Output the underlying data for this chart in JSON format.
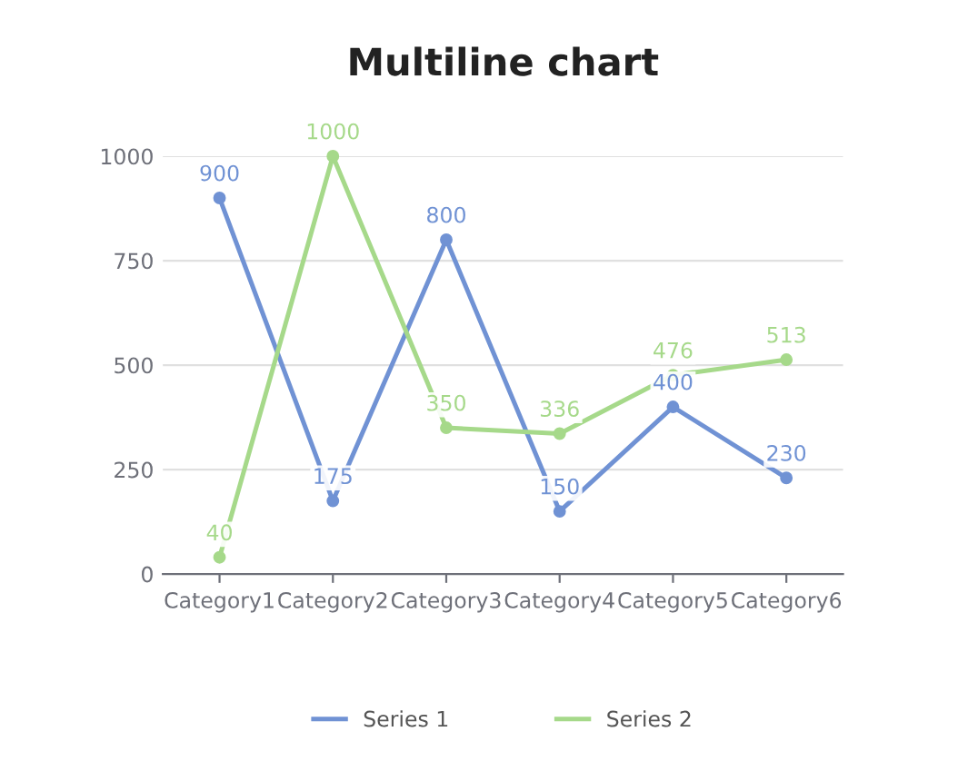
{
  "chart_data": {
    "type": "line",
    "title": "Multiline chart",
    "categories": [
      "Category1",
      "Category2",
      "Category3",
      "Category4",
      "Category5",
      "Category6"
    ],
    "series": [
      {
        "name": "Series 1",
        "color": "#7092d4",
        "values": [
          900,
          175,
          800,
          150,
          400,
          230
        ]
      },
      {
        "name": "Series 2",
        "color": "#a6d98a",
        "values": [
          40,
          1000,
          350,
          336,
          476,
          513
        ]
      }
    ],
    "ylim": [
      0,
      1000
    ],
    "yticks": [
      0,
      250,
      500,
      750,
      1000
    ],
    "grid": "y",
    "legend": "bottom",
    "marker": "circle",
    "line_style": "solid",
    "data_labels": true
  }
}
